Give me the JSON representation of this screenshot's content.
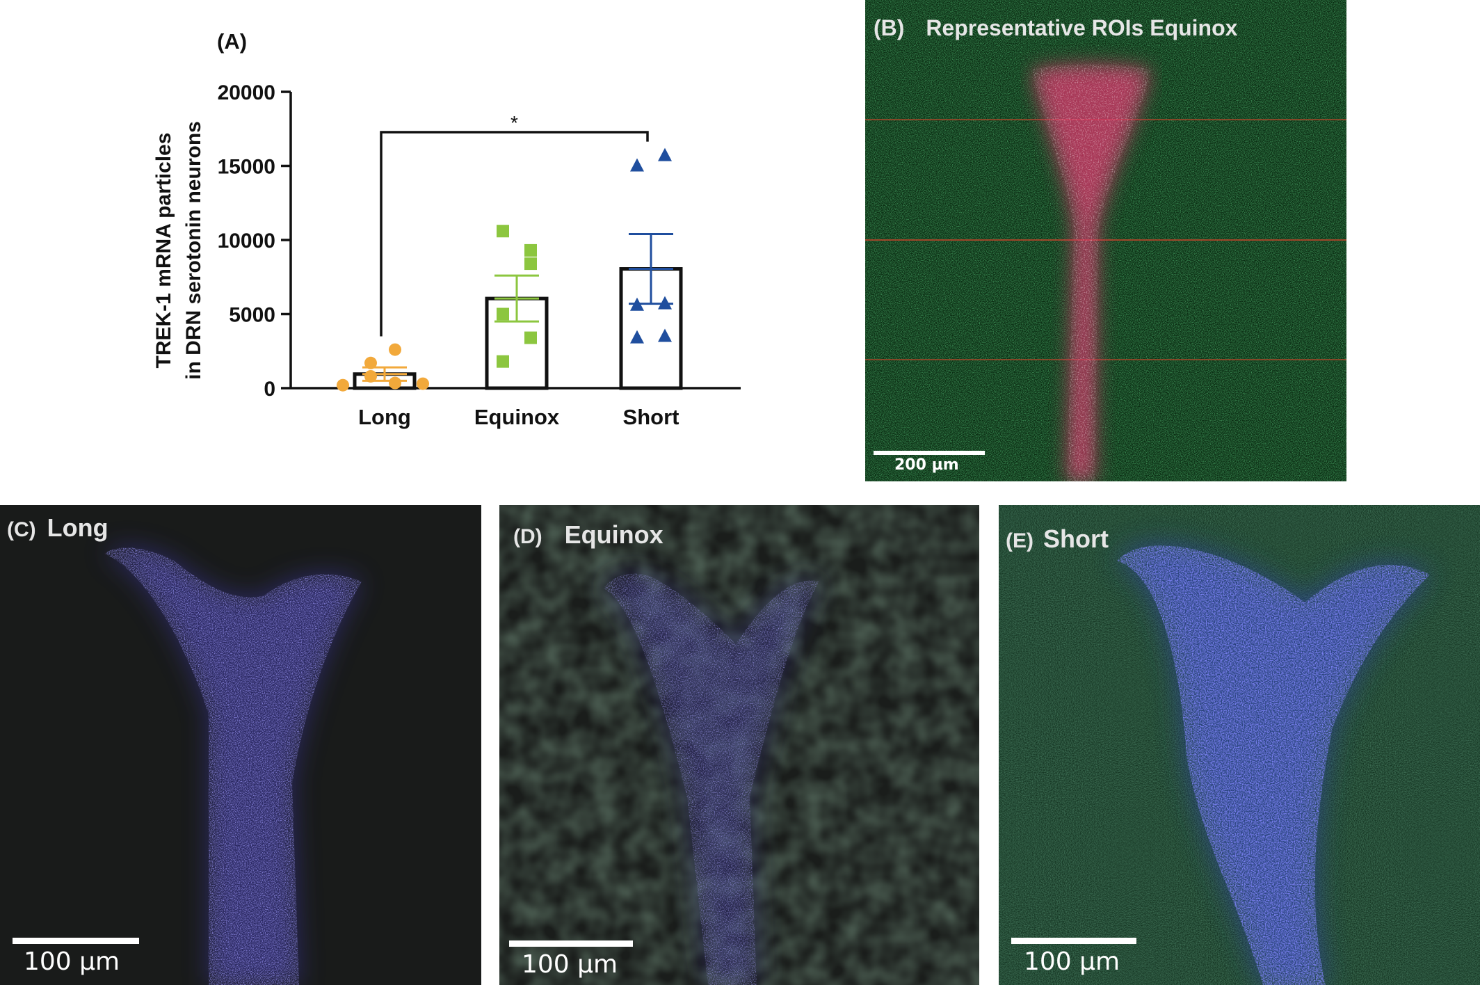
{
  "chart_data": {
    "type": "bar",
    "panel_label": "(A)",
    "ylabel_line1": "TREK-1 mRNA particles",
    "ylabel_line2": "in DRN serotonin neurons",
    "ylim": [
      0,
      20000
    ],
    "yticks": [
      0,
      5000,
      10000,
      15000,
      20000
    ],
    "ytick_labels": [
      "0",
      "5000",
      "10000",
      "15000",
      "20000"
    ],
    "categories": [
      "Long",
      "Equinox",
      "Short"
    ],
    "means": [
      950,
      6050,
      8050
    ],
    "sem": [
      450,
      1550,
      2350
    ],
    "points": [
      [
        200,
        800,
        1700,
        2600,
        350,
        300
      ],
      [
        10600,
        9300,
        8400,
        5000,
        3400,
        1800
      ],
      [
        15000,
        15700,
        5600,
        5700,
        3400,
        3500
      ]
    ],
    "marker_shapes": [
      "circle",
      "square",
      "triangle"
    ],
    "colors": [
      "#f2a93b",
      "#8cc63f",
      "#1f4e9e"
    ],
    "significance": {
      "from": "Long",
      "to": "Short",
      "label": "*"
    }
  },
  "panel_b": {
    "label": "(B)",
    "title": "Representative ROIs Equinox",
    "scale": "200 μm"
  },
  "panel_c": {
    "label": "(C)",
    "title": "Long",
    "scale": "100 μm"
  },
  "panel_d": {
    "label": "(D)",
    "title": "Equinox",
    "scale": "100 μm"
  },
  "panel_e": {
    "label": "(E)",
    "title": "Short",
    "scale": "100 μm"
  }
}
